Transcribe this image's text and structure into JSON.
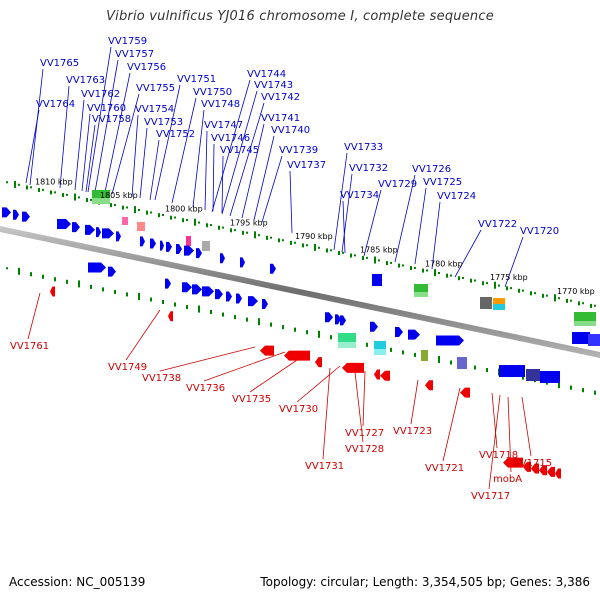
{
  "title": "Vibrio vulnificus YJ016 chromosome I, complete sequence",
  "footer": {
    "accession": "Accession: NC_005139",
    "summary": "Topology: circular; Length: 3,354,505 bp; Genes: 3,386"
  },
  "colors": {
    "axis": "#808080",
    "forward_label": "#0000cc",
    "reverse_label": "#cc0000",
    "tick": "#008000",
    "forward_gene": "#0000ee",
    "reverse_gene": "#ee0000"
  },
  "kbp_ticks": [
    "1810 kbp",
    "1805 kbp",
    "1800 kbp",
    "1795 kbp",
    "1790 kbp",
    "1785 kbp",
    "1780 kbp",
    "1775 kbp",
    "1770 kbp"
  ],
  "forward_genes": [
    "VV1765",
    "VV1759",
    "VV1757",
    "VV1763",
    "VV1756",
    "VV1762",
    "VV1755",
    "VV1751",
    "VV1764",
    "VV1760",
    "VV1750",
    "VV1744",
    "VV1743",
    "VV1758",
    "VV1754",
    "VV1748",
    "VV1742",
    "VV1753",
    "VV1741",
    "VV1747",
    "VV1752",
    "VV1740",
    "VV1746",
    "VV1745",
    "VV1739",
    "VV1737",
    "VV1733",
    "VV1732",
    "VV1726",
    "VV1729",
    "VV1725",
    "VV1734",
    "VV1724",
    "VV1722",
    "VV1720"
  ],
  "reverse_genes": [
    "VV1761",
    "VV1749",
    "VV1738",
    "VV1736",
    "VV1735",
    "VV1730",
    "VV1727",
    "VV1723",
    "VV1728",
    "VV1731",
    "VV1721",
    "VV1718",
    "VV1715",
    "mobA",
    "VV1717"
  ]
}
